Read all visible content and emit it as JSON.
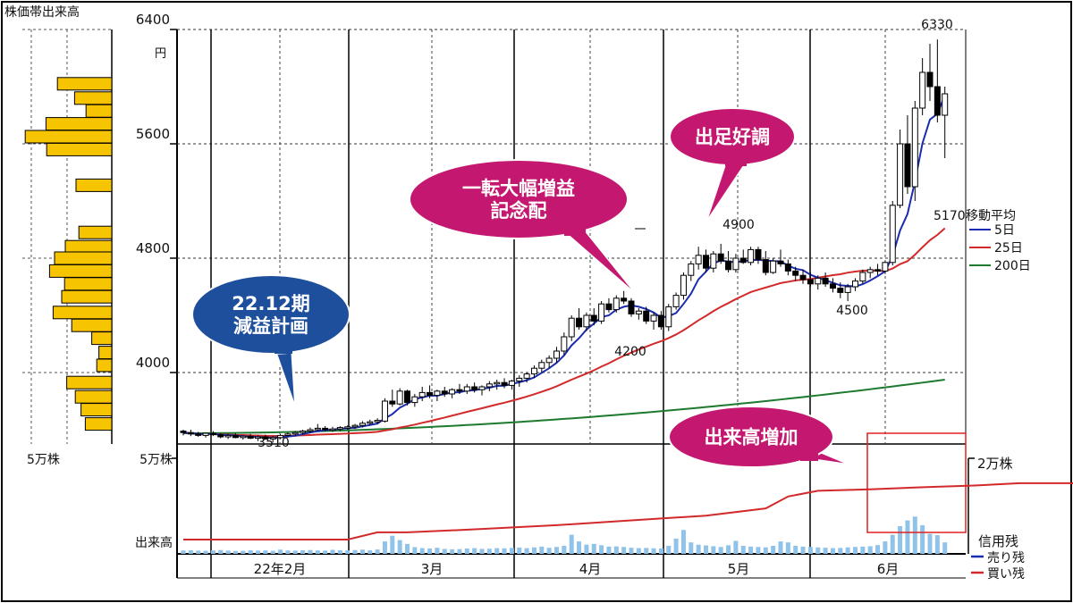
{
  "chart_data": {
    "type": "candlestick",
    "title": "",
    "corner_label": "株価帯出来高",
    "price_axis": {
      "ticks": [
        4000,
        4800,
        5600,
        6400
      ],
      "unit": "円",
      "range": [
        3500,
        6400
      ]
    },
    "volume_axis": {
      "unit_label": "5万株",
      "bottom_label": "出来高",
      "range": [
        0,
        50000
      ]
    },
    "margin_axis": {
      "unit_label": "2万株",
      "title": "信用残",
      "range": [
        0,
        20000
      ]
    },
    "profile_scale_label": "5万株",
    "months": [
      "22年2月",
      "3月",
      "4月",
      "5月",
      "6月"
    ],
    "legend": {
      "title": "移動平均",
      "items": [
        {
          "name": "5日",
          "color": "#1a2db0"
        },
        {
          "name": "25日",
          "color": "#d22a2a"
        },
        {
          "name": "200日",
          "color": "#1d7a2f"
        }
      ],
      "margin_items": [
        {
          "name": "売り残",
          "color": "#1a2db0"
        },
        {
          "name": "買い残",
          "color": "#d22a2a"
        }
      ]
    },
    "candles": [
      [
        3590,
        3600,
        3560,
        3580
      ],
      [
        3580,
        3600,
        3555,
        3570
      ],
      [
        3570,
        3585,
        3550,
        3560
      ],
      [
        3560,
        3580,
        3545,
        3575
      ],
      [
        3575,
        3590,
        3555,
        3565
      ],
      [
        3565,
        3575,
        3540,
        3550
      ],
      [
        3550,
        3570,
        3535,
        3560
      ],
      [
        3560,
        3575,
        3540,
        3545
      ],
      [
        3545,
        3560,
        3530,
        3555
      ],
      [
        3555,
        3570,
        3535,
        3540
      ],
      [
        3540,
        3560,
        3520,
        3550
      ],
      [
        3550,
        3565,
        3530,
        3535
      ],
      [
        3535,
        3555,
        3510,
        3545
      ],
      [
        3545,
        3570,
        3535,
        3560
      ],
      [
        3560,
        3580,
        3545,
        3570
      ],
      [
        3570,
        3590,
        3555,
        3580
      ],
      [
        3580,
        3600,
        3565,
        3590
      ],
      [
        3590,
        3615,
        3575,
        3600
      ],
      [
        3600,
        3640,
        3590,
        3610
      ],
      [
        3610,
        3625,
        3590,
        3600
      ],
      [
        3600,
        3620,
        3585,
        3605
      ],
      [
        3605,
        3625,
        3590,
        3615
      ],
      [
        3615,
        3630,
        3600,
        3620
      ],
      [
        3620,
        3640,
        3605,
        3630
      ],
      [
        3630,
        3660,
        3615,
        3645
      ],
      [
        3645,
        3670,
        3630,
        3655
      ],
      [
        3655,
        3680,
        3640,
        3665
      ],
      [
        3660,
        3820,
        3650,
        3800
      ],
      [
        3800,
        3880,
        3760,
        3780
      ],
      [
        3780,
        3890,
        3770,
        3870
      ],
      [
        3870,
        3880,
        3770,
        3790
      ],
      [
        3790,
        3850,
        3760,
        3830
      ],
      [
        3830,
        3900,
        3800,
        3860
      ],
      [
        3860,
        3910,
        3820,
        3840
      ],
      [
        3840,
        3880,
        3800,
        3870
      ],
      [
        3870,
        3900,
        3830,
        3850
      ],
      [
        3850,
        3890,
        3820,
        3880
      ],
      [
        3880,
        3920,
        3850,
        3870
      ],
      [
        3870,
        3920,
        3850,
        3900
      ],
      [
        3900,
        3930,
        3860,
        3880
      ],
      [
        3880,
        3910,
        3840,
        3900
      ],
      [
        3900,
        3940,
        3870,
        3920
      ],
      [
        3920,
        3950,
        3880,
        3930
      ],
      [
        3930,
        3960,
        3890,
        3910
      ],
      [
        3910,
        3950,
        3880,
        3940
      ],
      [
        3940,
        3980,
        3900,
        3960
      ],
      [
        3960,
        4000,
        3930,
        3990
      ],
      [
        3990,
        4050,
        3960,
        4030
      ],
      [
        4030,
        4090,
        4000,
        4070
      ],
      [
        4070,
        4120,
        4030,
        4100
      ],
      [
        4100,
        4180,
        4070,
        4150
      ],
      [
        4150,
        4280,
        4120,
        4250
      ],
      [
        4250,
        4400,
        4220,
        4380
      ],
      [
        4380,
        4450,
        4300,
        4320
      ],
      [
        4320,
        4420,
        4290,
        4400
      ],
      [
        4400,
        4450,
        4330,
        4360
      ],
      [
        4360,
        4500,
        4340,
        4480
      ],
      [
        4480,
        4520,
        4420,
        4440
      ],
      [
        4440,
        4540,
        4420,
        4520
      ],
      [
        4520,
        4570,
        4480,
        4500
      ],
      [
        4500,
        4520,
        4390,
        4410
      ],
      [
        4410,
        4450,
        4370,
        4430
      ],
      [
        4430,
        4460,
        4340,
        4360
      ],
      [
        4360,
        4420,
        4300,
        4400
      ],
      [
        4400,
        4430,
        4300,
        4320
      ],
      [
        4320,
        4480,
        4290,
        4460
      ],
      [
        4460,
        4560,
        4440,
        4540
      ],
      [
        4540,
        4700,
        4510,
        4680
      ],
      [
        4680,
        4780,
        4640,
        4760
      ],
      [
        4760,
        4880,
        4720,
        4820
      ],
      [
        4820,
        4860,
        4700,
        4730
      ],
      [
        4730,
        4850,
        4700,
        4830
      ],
      [
        4830,
        4900,
        4760,
        4780
      ],
      [
        4780,
        4850,
        4700,
        4720
      ],
      [
        4720,
        4830,
        4700,
        4800
      ],
      [
        4800,
        4860,
        4760,
        4770
      ],
      [
        4770,
        4880,
        4750,
        4860
      ],
      [
        4860,
        4880,
        4760,
        4790
      ],
      [
        4790,
        4850,
        4680,
        4700
      ],
      [
        4700,
        4800,
        4690,
        4780
      ],
      [
        4780,
        4860,
        4740,
        4760
      ],
      [
        4760,
        4790,
        4680,
        4710
      ],
      [
        4710,
        4740,
        4640,
        4680
      ],
      [
        4680,
        4720,
        4620,
        4650
      ],
      [
        4650,
        4700,
        4600,
        4620
      ],
      [
        4620,
        4680,
        4580,
        4660
      ],
      [
        4660,
        4700,
        4600,
        4620
      ],
      [
        4620,
        4660,
        4560,
        4590
      ],
      [
        4590,
        4630,
        4520,
        4560
      ],
      [
        4560,
        4620,
        4500,
        4600
      ],
      [
        4600,
        4660,
        4570,
        4640
      ],
      [
        4640,
        4720,
        4620,
        4700
      ],
      [
        4700,
        4740,
        4660,
        4720
      ],
      [
        4720,
        4760,
        4680,
        4710
      ],
      [
        4710,
        4780,
        4690,
        4770
      ],
      [
        4770,
        5200,
        4750,
        5170
      ],
      [
        5170,
        5700,
        5150,
        5600
      ],
      [
        5600,
        5800,
        5250,
        5300
      ],
      [
        5300,
        5900,
        5200,
        5850
      ],
      [
        5850,
        6200,
        5800,
        6100
      ],
      [
        6100,
        6300,
        5900,
        6000
      ],
      [
        6000,
        6330,
        5750,
        5800
      ],
      [
        5800,
        6000,
        5500,
        5950
      ]
    ],
    "volumes": [
      1800,
      1900,
      1700,
      1600,
      1800,
      2000,
      1700,
      1500,
      1600,
      1900,
      1700,
      1800,
      1600,
      2200,
      1800,
      1700,
      1900,
      2000,
      1800,
      1700,
      2100,
      1900,
      1800,
      2000,
      2200,
      1900,
      2300,
      6500,
      9500,
      7200,
      5200,
      3500,
      3000,
      2800,
      3200,
      2600,
      2400,
      2500,
      2800,
      3000,
      2600,
      2700,
      3000,
      2900,
      3100,
      3300,
      3000,
      3400,
      3800,
      3200,
      3600,
      4200,
      10000,
      6500,
      4800,
      5200,
      4500,
      3800,
      3900,
      3600,
      3200,
      3000,
      3100,
      2900,
      2800,
      4200,
      8000,
      12500,
      6000,
      4800,
      4400,
      4000,
      3600,
      4500,
      6800,
      4200,
      3800,
      3600,
      3400,
      4200,
      6500,
      6000,
      4200,
      3800,
      3600,
      3400,
      3200,
      3000,
      3100,
      3400,
      3600,
      3800,
      4000,
      4600,
      6500,
      10000,
      14500,
      17500,
      19500,
      15000,
      10500,
      9800,
      6000
    ],
    "margin_buy": [
      [
        0,
        3000
      ],
      [
        12,
        3000
      ],
      [
        22,
        3000
      ],
      [
        26,
        4500
      ],
      [
        30,
        4500
      ],
      [
        40,
        5200
      ],
      [
        50,
        6000
      ],
      [
        60,
        7000
      ],
      [
        70,
        8000
      ],
      [
        78,
        9500
      ],
      [
        81,
        12000
      ],
      [
        85,
        13200
      ],
      [
        92,
        13500
      ],
      [
        100,
        14000
      ],
      [
        106,
        14300
      ],
      [
        112,
        14800
      ],
      [
        122,
        14800
      ],
      [
        126,
        14000
      ],
      [
        134,
        13500
      ],
      [
        148,
        13800
      ],
      [
        149,
        19800
      ],
      [
        157,
        19800
      ]
    ],
    "volume_profile": [
      [
        6020,
        7600
      ],
      [
        5920,
        5200
      ],
      [
        5830,
        3600
      ],
      [
        5740,
        9200
      ],
      [
        5650,
        12100
      ],
      [
        5560,
        9100
      ],
      [
        5310,
        5000
      ],
      [
        4980,
        4600
      ],
      [
        4880,
        6500
      ],
      [
        4800,
        8000
      ],
      [
        4710,
        8700
      ],
      [
        4620,
        6600
      ],
      [
        4530,
        7000
      ],
      [
        4420,
        8200
      ],
      [
        4330,
        5600
      ],
      [
        4240,
        2800
      ],
      [
        4140,
        1800
      ],
      [
        4050,
        2100
      ],
      [
        3930,
        6300
      ],
      [
        3830,
        5100
      ],
      [
        3740,
        4300
      ],
      [
        3640,
        3700
      ]
    ],
    "annotations": {
      "low_mar": "3510",
      "low_apr": "4200",
      "high_may": "4900",
      "low_jun": "4500",
      "last": "5170",
      "high_jun": "6330"
    },
    "callouts": [
      {
        "name": "guidance-callout",
        "lines": [
          "22.12期",
          "減益計画"
        ],
        "color": "#1d4f9c"
      },
      {
        "name": "earnings-callout",
        "lines": [
          "一転大幅増益",
          "記念配"
        ],
        "color": "#c4176f"
      },
      {
        "name": "sales-callout",
        "lines": [
          "出足好調"
        ],
        "color": "#c4176f"
      },
      {
        "name": "volume-callout",
        "lines": [
          "出来高増加"
        ],
        "color": "#c4176f"
      }
    ]
  }
}
